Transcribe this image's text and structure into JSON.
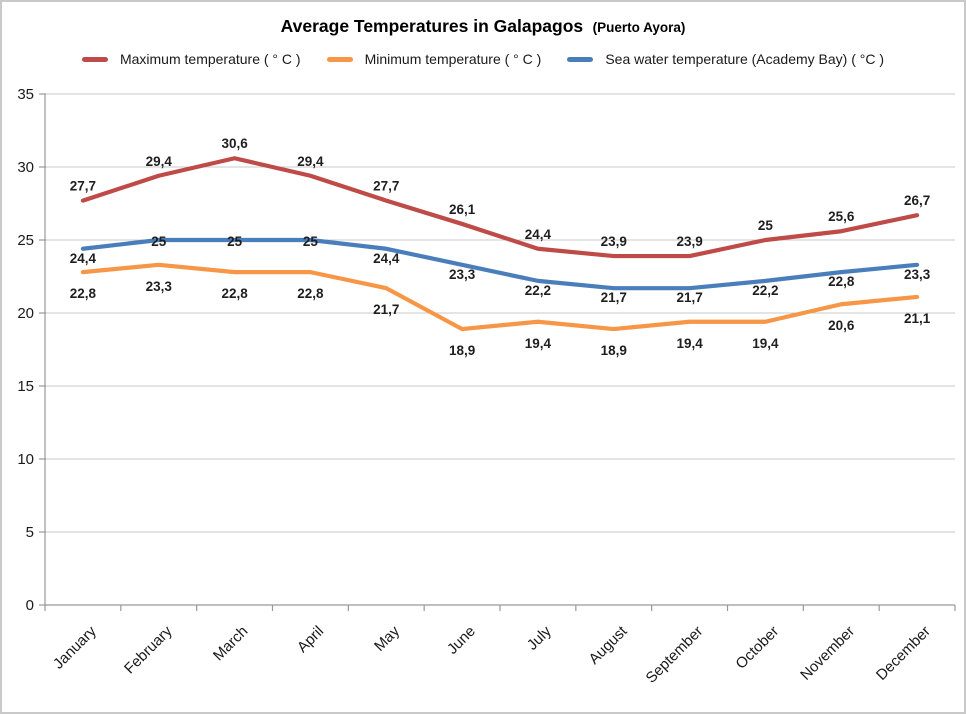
{
  "title": {
    "main": "Average Temperatures in Galapagos",
    "suffix": "(Puerto Ayora)"
  },
  "chart_data": {
    "type": "line",
    "title": "Average Temperatures in Galapagos (Puerto Ayora)",
    "categories": [
      "January",
      "February",
      "March",
      "April",
      "May",
      "June",
      "July",
      "August",
      "September",
      "October",
      "November",
      "December"
    ],
    "series": [
      {
        "name": "Maximum temperature ( ° C )",
        "color": "#be4b48",
        "values": [
          27.7,
          29.4,
          30.6,
          29.4,
          27.7,
          26.1,
          24.4,
          23.9,
          23.9,
          25,
          25.6,
          26.7
        ],
        "labels": [
          "27,7",
          "29,4",
          "30,6",
          "29,4",
          "27,7",
          "26,1",
          "24,4",
          "23,9",
          "23,9",
          "25",
          "25,6",
          "26,7"
        ]
      },
      {
        "name": "Minimum temperature ( ° C )",
        "color": "#f79646",
        "values": [
          22.8,
          23.3,
          22.8,
          22.8,
          21.7,
          18.9,
          19.4,
          18.9,
          19.4,
          19.4,
          20.6,
          21.1
        ],
        "labels": [
          "22,8",
          "23,3",
          "22,8",
          "22,8",
          "21,7",
          "18,9",
          "19,4",
          "18,9",
          "19,4",
          "19,4",
          "20,6",
          "21,1"
        ]
      },
      {
        "name": "Sea water temperature (Academy Bay) ( °C )",
        "color": "#4a7ebb",
        "values": [
          24.4,
          25,
          25,
          25,
          24.4,
          23.3,
          22.2,
          21.7,
          21.7,
          22.2,
          22.8,
          23.3
        ],
        "labels": [
          "24,4",
          "25",
          "25",
          "25",
          "24,4",
          "23,3",
          "22,2",
          "21,7",
          "21,7",
          "22,2",
          "22,8",
          "23,3"
        ]
      }
    ],
    "ylim": [
      0,
      35
    ],
    "ytick_step": 5,
    "yticks": [
      "0",
      "5",
      "10",
      "15",
      "20",
      "25",
      "30",
      "35"
    ],
    "grid": "horizontal-only",
    "legend_position": "top",
    "decimal_separator": ","
  }
}
